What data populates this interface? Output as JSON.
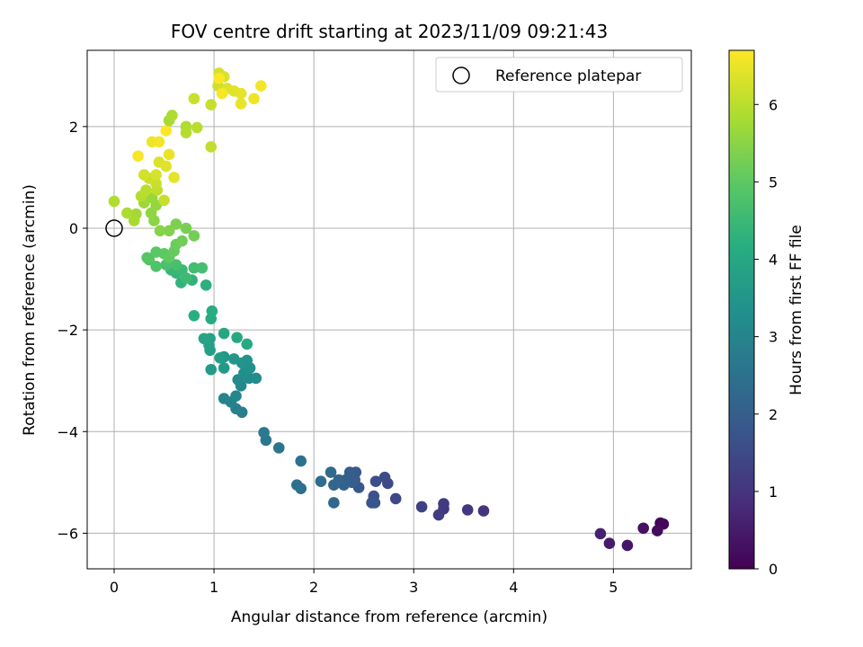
{
  "chart_data": {
    "type": "scatter",
    "title": "FOV centre drift starting at 2023/11/09 09:21:43",
    "xlabel": "Angular distance from reference (arcmin)",
    "ylabel": "Rotation from reference (arcmin)",
    "xlim": [
      -0.27,
      5.78
    ],
    "ylim": [
      -6.7,
      3.5
    ],
    "xticks": [
      0,
      1,
      2,
      3,
      4,
      5
    ],
    "yticks": [
      -6,
      -4,
      -2,
      0,
      2
    ],
    "grid": true,
    "legend": {
      "placement": "upper right",
      "entries": [
        "Reference platepar"
      ]
    },
    "reference_point": {
      "x": 0,
      "y": 0,
      "label": "Reference platepar"
    },
    "colorbar": {
      "label": "Hours from first FF file",
      "range": [
        0,
        6.7
      ],
      "ticks": [
        0,
        1,
        2,
        3,
        4,
        5,
        6
      ],
      "colormap": "viridis"
    },
    "points": [
      [
        5.47,
        -5.8,
        0.05
      ],
      [
        5.5,
        -5.82,
        0.1
      ],
      [
        5.44,
        -5.95,
        0.2
      ],
      [
        5.3,
        -5.9,
        0.3
      ],
      [
        5.14,
        -6.24,
        0.4
      ],
      [
        4.96,
        -6.2,
        0.5
      ],
      [
        4.87,
        -6.01,
        0.6
      ],
      [
        3.7,
        -5.56,
        1.0
      ],
      [
        3.54,
        -5.54,
        1.05
      ],
      [
        3.3,
        -5.52,
        1.1
      ],
      [
        3.3,
        -5.42,
        1.15
      ],
      [
        3.25,
        -5.64,
        1.2
      ],
      [
        3.08,
        -5.48,
        1.3
      ],
      [
        2.82,
        -5.32,
        1.45
      ],
      [
        2.74,
        -5.02,
        1.5
      ],
      [
        2.71,
        -4.9,
        1.55
      ],
      [
        2.62,
        -4.98,
        1.6
      ],
      [
        2.6,
        -5.27,
        1.65
      ],
      [
        2.61,
        -5.4,
        1.7
      ],
      [
        2.58,
        -5.4,
        1.75
      ],
      [
        2.45,
        -5.1,
        1.8
      ],
      [
        2.42,
        -4.8,
        1.85
      ],
      [
        2.41,
        -4.95,
        1.9
      ],
      [
        2.38,
        -5.0,
        1.95
      ],
      [
        2.36,
        -4.8,
        2.0
      ],
      [
        2.32,
        -4.95,
        2.05
      ],
      [
        2.3,
        -5.05,
        2.1
      ],
      [
        2.25,
        -4.95,
        2.15
      ],
      [
        2.2,
        -5.05,
        2.2
      ],
      [
        2.2,
        -5.4,
        2.25
      ],
      [
        2.17,
        -4.8,
        2.3
      ],
      [
        2.07,
        -4.98,
        2.35
      ],
      [
        1.87,
        -5.12,
        2.4
      ],
      [
        1.83,
        -5.05,
        2.45
      ],
      [
        1.87,
        -4.58,
        2.5
      ],
      [
        1.65,
        -4.32,
        2.6
      ],
      [
        1.52,
        -4.17,
        2.65
      ],
      [
        1.5,
        -4.02,
        2.7
      ],
      [
        1.28,
        -3.62,
        2.85
      ],
      [
        1.22,
        -3.55,
        2.9
      ],
      [
        1.17,
        -3.42,
        2.95
      ],
      [
        1.1,
        -3.35,
        3.0
      ],
      [
        1.22,
        -3.3,
        3.05
      ],
      [
        1.27,
        -3.1,
        3.1
      ],
      [
        1.24,
        -2.98,
        3.15
      ],
      [
        1.35,
        -2.95,
        3.2
      ],
      [
        1.42,
        -2.95,
        3.25
      ],
      [
        1.3,
        -2.85,
        3.3
      ],
      [
        1.36,
        -2.75,
        3.35
      ],
      [
        1.33,
        -2.6,
        3.4
      ],
      [
        1.28,
        -2.65,
        3.45
      ],
      [
        1.2,
        -2.57,
        3.5
      ],
      [
        1.1,
        -2.53,
        3.55
      ],
      [
        1.1,
        -2.75,
        3.6
      ],
      [
        0.97,
        -2.78,
        3.65
      ],
      [
        1.06,
        -2.55,
        3.7
      ],
      [
        0.96,
        -2.4,
        3.75
      ],
      [
        0.95,
        -2.3,
        3.8
      ],
      [
        0.96,
        -2.17,
        3.85
      ],
      [
        0.9,
        -2.17,
        3.9
      ],
      [
        1.1,
        -2.07,
        3.95
      ],
      [
        1.23,
        -2.15,
        4.0
      ],
      [
        1.33,
        -2.28,
        4.05
      ],
      [
        0.97,
        -1.78,
        4.1
      ],
      [
        0.98,
        -1.63,
        4.15
      ],
      [
        0.8,
        -1.72,
        4.2
      ],
      [
        0.92,
        -1.12,
        4.25
      ],
      [
        0.78,
        -1.02,
        4.3
      ],
      [
        0.67,
        -1.07,
        4.35
      ],
      [
        0.62,
        -0.88,
        4.4
      ],
      [
        0.57,
        -0.82,
        4.45
      ],
      [
        0.68,
        -0.82,
        4.5
      ],
      [
        0.72,
        -0.98,
        4.55
      ],
      [
        0.8,
        -0.78,
        4.6
      ],
      [
        0.88,
        -0.78,
        4.65
      ],
      [
        0.62,
        -0.72,
        4.7
      ],
      [
        0.52,
        -0.72,
        4.75
      ],
      [
        0.42,
        -0.75,
        4.8
      ],
      [
        0.35,
        -0.62,
        4.85
      ],
      [
        0.33,
        -0.58,
        4.9
      ],
      [
        0.42,
        -0.47,
        4.95
      ],
      [
        0.5,
        -0.5,
        5.0
      ],
      [
        0.55,
        -0.57,
        5.05
      ],
      [
        0.6,
        -0.45,
        5.1
      ],
      [
        0.62,
        -0.32,
        5.15
      ],
      [
        0.68,
        -0.25,
        5.2
      ],
      [
        0.8,
        -0.15,
        5.25
      ],
      [
        0.72,
        0.0,
        5.3
      ],
      [
        0.62,
        0.08,
        5.35
      ],
      [
        0.55,
        -0.05,
        5.4
      ],
      [
        0.46,
        -0.05,
        5.45
      ],
      [
        0.4,
        0.15,
        5.5
      ],
      [
        0.37,
        0.3,
        5.55
      ],
      [
        0.42,
        0.45,
        5.6
      ],
      [
        0.38,
        0.6,
        5.65
      ],
      [
        0.3,
        0.5,
        5.7
      ],
      [
        0.22,
        0.28,
        5.75
      ],
      [
        0.2,
        0.15,
        5.8
      ],
      [
        0.13,
        0.3,
        5.85
      ],
      [
        0.0,
        0.53,
        5.9
      ],
      [
        0.27,
        0.63,
        5.95
      ],
      [
        0.32,
        0.75,
        6.0
      ],
      [
        0.43,
        0.75,
        6.05
      ],
      [
        0.5,
        0.55,
        6.1
      ],
      [
        0.42,
        0.88,
        6.15
      ],
      [
        0.35,
        0.98,
        6.2
      ],
      [
        0.3,
        1.05,
        6.25
      ],
      [
        0.42,
        1.05,
        6.3
      ],
      [
        0.45,
        1.3,
        6.35
      ],
      [
        0.52,
        1.22,
        6.4
      ],
      [
        0.6,
        1.0,
        6.45
      ],
      [
        0.55,
        1.45,
        6.5
      ],
      [
        0.38,
        1.7,
        6.55
      ],
      [
        0.45,
        1.7,
        6.6
      ],
      [
        0.24,
        1.42,
        6.65
      ],
      [
        0.52,
        1.92,
        6.7
      ]
    ],
    "upper_points": [
      [
        0.55,
        2.12,
        5.8
      ],
      [
        0.58,
        2.22,
        5.85
      ],
      [
        0.72,
        2.0,
        5.9
      ],
      [
        0.72,
        1.88,
        5.95
      ],
      [
        0.83,
        1.98,
        6.0
      ],
      [
        0.97,
        1.6,
        6.05
      ],
      [
        0.97,
        2.43,
        6.1
      ],
      [
        0.8,
        2.55,
        6.15
      ],
      [
        1.04,
        2.8,
        6.2
      ],
      [
        1.05,
        3.05,
        6.25
      ],
      [
        1.1,
        2.98,
        6.3
      ],
      [
        1.13,
        2.75,
        6.35
      ],
      [
        1.2,
        2.7,
        6.4
      ],
      [
        1.27,
        2.65,
        6.45
      ],
      [
        1.27,
        2.45,
        6.5
      ],
      [
        1.4,
        2.55,
        6.55
      ],
      [
        1.47,
        2.8,
        6.6
      ],
      [
        1.08,
        2.65,
        6.65
      ],
      [
        1.05,
        2.95,
        6.68
      ]
    ]
  }
}
